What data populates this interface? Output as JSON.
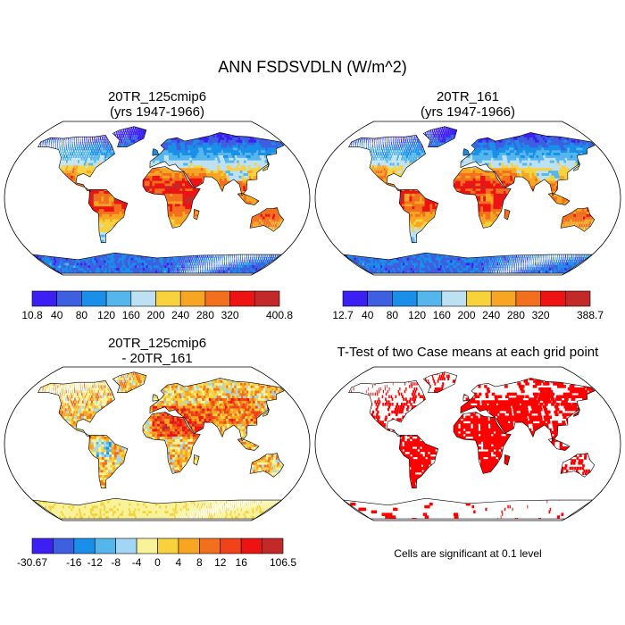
{
  "chart_data": {
    "type": "heatmap",
    "title": "ANN FSDSVDLN (W/m^2)",
    "panels": [
      {
        "id": "case1",
        "title_line1": "20TR_125cmip6",
        "title_line2": "(yrs 1947-1966)",
        "colorbar": {
          "colors": [
            "#3c1ff2",
            "#3d5fe0",
            "#1a8fe9",
            "#55b6ec",
            "#bde0f2",
            "#f7d23c",
            "#f7a623",
            "#f2701d",
            "#ee1313",
            "#c42929"
          ],
          "labels": [
            "10.8",
            "40",
            "80",
            "120",
            "160",
            "200",
            "240",
            "280",
            "320",
            "400.8"
          ],
          "label_edges": [
            0,
            1,
            2,
            3,
            4,
            5,
            6,
            7,
            8,
            10
          ]
        }
      },
      {
        "id": "case2",
        "title_line1": "20TR_161",
        "title_line2": "(yrs 1947-1966)",
        "colorbar": {
          "colors": [
            "#3c1ff2",
            "#3d5fe0",
            "#1a8fe9",
            "#55b6ec",
            "#bde0f2",
            "#f7d23c",
            "#f7a623",
            "#f2701d",
            "#ee1313",
            "#c42929"
          ],
          "labels": [
            "12.7",
            "40",
            "80",
            "120",
            "160",
            "200",
            "240",
            "280",
            "320",
            "388.7"
          ],
          "label_edges": [
            0,
            1,
            2,
            3,
            4,
            5,
            6,
            7,
            8,
            10
          ]
        }
      },
      {
        "id": "diff",
        "title_line1": "20TR_125cmip6",
        "title_line2": "- 20TR_161",
        "colorbar": {
          "colors": [
            "#3c1ff2",
            "#3d5fe0",
            "#1a8fe9",
            "#55b6ec",
            "#a3d6f5",
            "#f8f39a",
            "#f7d23c",
            "#f7a623",
            "#f2701d",
            "#f0431a",
            "#ee1313",
            "#c42929"
          ],
          "labels": [
            "-30.67",
            "-16",
            "-12",
            "-8",
            "-4",
            "0",
            "4",
            "8",
            "12",
            "16",
            "106.5"
          ],
          "label_edges": [
            0,
            2,
            3,
            4,
            5,
            6,
            7,
            8,
            9,
            10,
            12
          ]
        }
      },
      {
        "id": "ttest",
        "title_line1": "T-Test of two Case means at each grid point",
        "footnote": "Cells are significant at 0.1 level",
        "significant_color": "#ff0000"
      }
    ]
  }
}
